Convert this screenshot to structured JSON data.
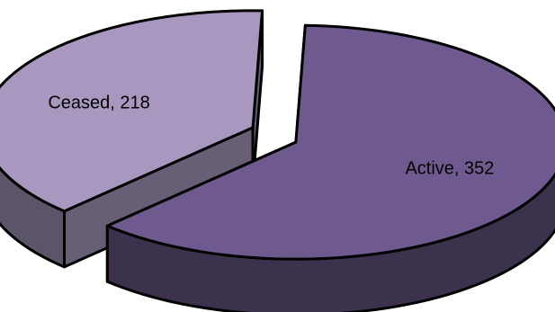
{
  "chart_data": {
    "type": "pie",
    "style": "3d-exploded",
    "slices": [
      {
        "category": "Active",
        "value": 352,
        "color": "#6E5A8E",
        "label": "Active, 352"
      },
      {
        "category": "Ceased",
        "value": 218,
        "color": "#A898BF",
        "label": "Ceased, 218"
      }
    ],
    "title": "",
    "legend": "none",
    "data_labels": "category-and-value"
  }
}
